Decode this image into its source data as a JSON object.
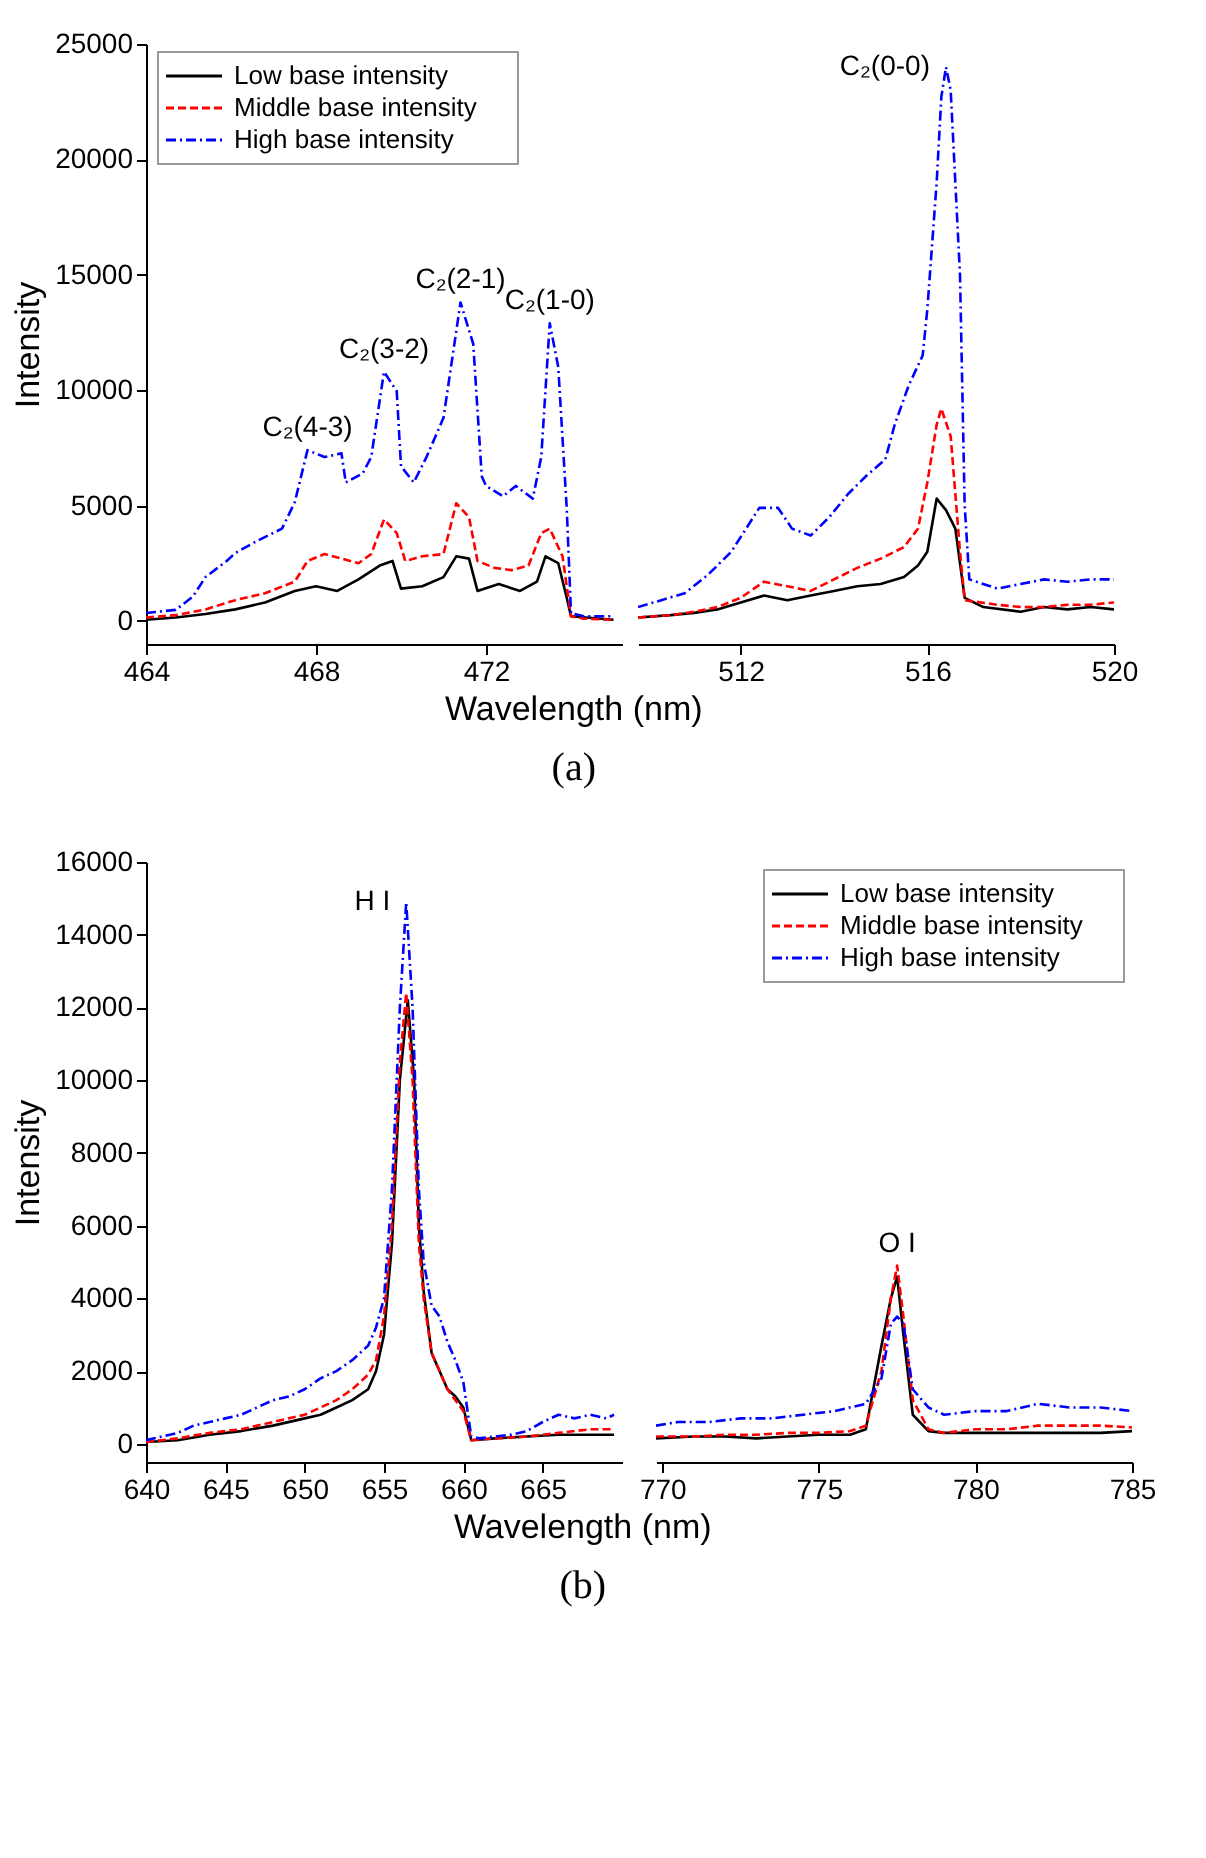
{
  "chart_data": [
    {
      "type": "line",
      "xlabel": "Wavelength (nm)",
      "ylabel": "Intensity",
      "xlim": [
        464,
        475.2
      ],
      "xticks": [
        464,
        468,
        472
      ],
      "ylim": [
        -1000,
        25000
      ],
      "yticks": [
        0,
        5000,
        10000,
        15000,
        20000,
        25000
      ],
      "grid": false,
      "legend": "top left",
      "annotations": [
        {
          "text": "C₂(4-3)",
          "x": 467.8,
          "y": 7400
        },
        {
          "text": "C₂(3-2)",
          "x": 469.6,
          "y": 10800
        },
        {
          "text": "C₂(2-1)",
          "x": 471.4,
          "y": 13800
        },
        {
          "text": "C₂(1-0)",
          "x": 473.5,
          "y": 12900
        },
        "(a)"
      ],
      "series": [
        {
          "name": "Low base intensity",
          "color": "#000000",
          "line_style": "solid",
          "x": [
            464.0,
            464.7,
            465.4,
            466.1,
            466.8,
            467.5,
            468.0,
            468.5,
            469.0,
            469.5,
            469.8,
            470.0,
            470.5,
            471.0,
            471.3,
            471.6,
            471.8,
            472.3,
            472.8,
            473.2,
            473.4,
            473.7,
            473.9,
            474.0,
            475.0
          ],
          "values": [
            50,
            150,
            300,
            500,
            800,
            1300,
            1500,
            1300,
            1800,
            2400,
            2600,
            1400,
            1500,
            1900,
            2800,
            2700,
            1300,
            1600,
            1300,
            1700,
            2800,
            2500,
            1000,
            200,
            50
          ]
        },
        {
          "name": "Middle base intensity",
          "color": "#ff0000",
          "line_style": "dashed",
          "x": [
            464.0,
            464.7,
            465.4,
            466.1,
            466.8,
            467.5,
            467.8,
            468.2,
            468.6,
            469.0,
            469.3,
            469.6,
            469.9,
            470.1,
            470.5,
            471.0,
            471.3,
            471.6,
            471.8,
            472.2,
            472.6,
            473.0,
            473.3,
            473.5,
            473.8,
            474.0,
            474.3,
            475.0
          ],
          "values": [
            150,
            250,
            500,
            900,
            1200,
            1700,
            2600,
            2900,
            2700,
            2500,
            2900,
            4400,
            3800,
            2600,
            2800,
            2900,
            5100,
            4500,
            2600,
            2300,
            2200,
            2400,
            3800,
            4000,
            2800,
            200,
            100,
            50
          ]
        },
        {
          "name": "High base intensity",
          "color": "#0000ff",
          "line_style": "dashdot",
          "x": [
            464.0,
            464.7,
            465.1,
            465.4,
            465.9,
            466.1,
            466.6,
            467.2,
            467.5,
            467.8,
            468.2,
            468.6,
            468.7,
            469.1,
            469.3,
            469.6,
            469.9,
            470.0,
            470.3,
            470.6,
            471.0,
            471.4,
            471.7,
            471.9,
            472.0,
            472.4,
            472.7,
            473.1,
            473.3,
            473.5,
            473.7,
            473.9,
            474.0,
            474.3,
            475.0
          ],
          "values": [
            340,
            480,
            1050,
            1900,
            2600,
            2940,
            3450,
            4000,
            5140,
            7400,
            7100,
            7260,
            6000,
            6400,
            7100,
            10800,
            9950,
            6700,
            6000,
            7100,
            8800,
            13800,
            12000,
            6270,
            5850,
            5400,
            5850,
            5300,
            7100,
            12900,
            11000,
            4860,
            340,
            200,
            200
          ]
        }
      ]
    },
    {
      "type": "line",
      "xlim": [
        509.8,
        520
      ],
      "xticks": [
        512,
        516,
        520
      ],
      "ylim": [
        -1000,
        25000
      ],
      "tick_labels": "x",
      "grid": false,
      "annotations": [
        {
          "text": "C₂(0-0)",
          "x": 516.4,
          "y": 24000
        }
      ],
      "series": [
        {
          "color": "#000000",
          "line_style": "solid",
          "x": [
            509.8,
            510.5,
            511.0,
            511.5,
            512.0,
            512.5,
            513.0,
            513.5,
            514.0,
            514.5,
            515.0,
            515.5,
            515.8,
            516.0,
            516.2,
            516.4,
            516.6,
            516.8,
            517.2,
            518.0,
            518.5,
            519.0,
            519.5,
            520.0
          ],
          "values": [
            150,
            250,
            350,
            500,
            800,
            1100,
            900,
            1100,
            1300,
            1500,
            1600,
            1900,
            2400,
            3000,
            5300,
            4800,
            4000,
            1000,
            600,
            400,
            600,
            500,
            600,
            500
          ]
        },
        {
          "color": "#ff0000",
          "line_style": "dashed",
          "x": [
            509.8,
            510.5,
            511.0,
            511.5,
            512.0,
            512.5,
            513.0,
            513.5,
            514.0,
            514.5,
            515.0,
            515.5,
            515.8,
            516.0,
            516.2,
            516.3,
            516.5,
            516.7,
            516.8,
            517.5,
            518.0,
            518.5,
            519.0,
            519.5,
            520.0
          ],
          "values": [
            150,
            250,
            400,
            600,
            1000,
            1700,
            1500,
            1300,
            1800,
            2300,
            2700,
            3200,
            4000,
            6000,
            8500,
            9200,
            8000,
            3000,
            900,
            700,
            600,
            600,
            700,
            700,
            800
          ]
        },
        {
          "color": "#0000ff",
          "line_style": "dashdot",
          "x": [
            509.8,
            510.3,
            510.8,
            511.3,
            511.8,
            512.4,
            512.8,
            513.1,
            513.5,
            513.9,
            514.3,
            514.7,
            515.1,
            515.3,
            515.6,
            515.9,
            516.0,
            516.2,
            516.3,
            516.4,
            516.5,
            516.7,
            516.8,
            516.9,
            517.5,
            518.0,
            518.5,
            519.0,
            519.5,
            520.0
          ],
          "values": [
            600,
            900,
            1200,
            2000,
            3000,
            4900,
            4900,
            4000,
            3700,
            4500,
            5500,
            6300,
            7000,
            8500,
            10200,
            11500,
            13500,
            19000,
            22700,
            24000,
            23000,
            15000,
            5000,
            1800,
            1400,
            1600,
            1800,
            1700,
            1800,
            1800
          ]
        }
      ]
    },
    {
      "type": "line",
      "xlabel": "Wavelength (nm)",
      "ylabel": "Intensity",
      "xlim": [
        640,
        670
      ],
      "xticks": [
        640,
        645,
        650,
        655,
        660,
        665
      ],
      "ylim": [
        -500,
        16000
      ],
      "yticks": [
        0,
        2000,
        4000,
        6000,
        8000,
        10000,
        12000,
        14000,
        16000
      ],
      "grid": false,
      "annotations": [
        {
          "text": "H I",
          "x": 656.4,
          "y": 14900
        },
        "(b)"
      ],
      "series": [
        {
          "color": "#000000",
          "line_style": "solid",
          "x": [
            640,
            642,
            644,
            646,
            648,
            650,
            651,
            652,
            653,
            654,
            654.5,
            655,
            655.5,
            656,
            656.5,
            656.9,
            657.2,
            657.5,
            658,
            658.5,
            659,
            659.5,
            660,
            660.5,
            662,
            664,
            666,
            668,
            669.5
          ],
          "values": [
            50,
            100,
            250,
            350,
            500,
            700,
            800,
            1000,
            1200,
            1500,
            2000,
            3000,
            5500,
            10000,
            12200,
            10000,
            6000,
            4200,
            2500,
            2000,
            1500,
            1300,
            1000,
            100,
            150,
            200,
            250,
            250,
            250
          ]
        },
        {
          "color": "#ff0000",
          "line_style": "dashed",
          "x": [
            640,
            642,
            644,
            646,
            648,
            650,
            651,
            652,
            653,
            654,
            654.5,
            655,
            655.5,
            656,
            656.4,
            656.8,
            657.2,
            657.5,
            658,
            658.5,
            659,
            659.5,
            660,
            660.5,
            662,
            664,
            666,
            668,
            669.5
          ],
          "values": [
            50,
            150,
            300,
            400,
            600,
            800,
            1000,
            1200,
            1500,
            1900,
            2300,
            3500,
            6000,
            10500,
            12400,
            10000,
            5500,
            4000,
            2500,
            2000,
            1500,
            1200,
            900,
            100,
            150,
            200,
            300,
            400,
            400
          ]
        },
        {
          "color": "#0000ff",
          "line_style": "dashdot",
          "x": [
            640,
            641,
            642,
            643,
            644,
            645,
            646,
            647,
            648,
            649,
            650,
            651,
            652,
            653,
            654,
            654.5,
            655,
            655.5,
            656,
            656.4,
            656.8,
            657.2,
            657.5,
            658,
            658.5,
            659,
            659.5,
            660,
            660.5,
            661,
            662,
            663,
            664,
            665,
            666,
            667,
            668,
            669,
            669.5
          ],
          "values": [
            100,
            200,
            300,
            500,
            600,
            700,
            800,
            1000,
            1200,
            1300,
            1500,
            1800,
            2000,
            2300,
            2700,
            3200,
            4000,
            7000,
            12000,
            14900,
            12000,
            7000,
            5000,
            3800,
            3500,
            2800,
            2300,
            1700,
            200,
            150,
            200,
            250,
            350,
            600,
            800,
            700,
            800,
            700,
            800
          ]
        }
      ]
    },
    {
      "type": "line",
      "xlim": [
        769.8,
        785
      ],
      "xticks": [
        770,
        775,
        780,
        785
      ],
      "ylim": [
        -500,
        16000
      ],
      "tick_labels": "x",
      "grid": false,
      "legend": "top right",
      "annotations": [
        {
          "text": "O I",
          "x": 777.5,
          "y": 4900
        }
      ],
      "series": [
        {
          "name": "Low base intensity",
          "color": "#000000",
          "line_style": "solid",
          "x": [
            769.8,
            771,
            772,
            773,
            774,
            775,
            776,
            776.5,
            777,
            777.3,
            777.5,
            777.7,
            778,
            778.5,
            779,
            780,
            781,
            782,
            783,
            784,
            785
          ],
          "values": [
            150,
            200,
            200,
            150,
            200,
            250,
            250,
            400,
            2700,
            4000,
            4600,
            3000,
            800,
            350,
            300,
            300,
            300,
            300,
            300,
            300,
            350
          ]
        },
        {
          "name": "Middle base intensity",
          "color": "#ff0000",
          "line_style": "dashed",
          "x": [
            769.8,
            771,
            772,
            773,
            774,
            775,
            776,
            776.5,
            777,
            777.3,
            777.5,
            777.7,
            778,
            778.5,
            779,
            780,
            781,
            782,
            783,
            784,
            785
          ],
          "values": [
            200,
            200,
            250,
            250,
            300,
            300,
            350,
            500,
            2000,
            4000,
            4900,
            3500,
            1200,
            400,
            300,
            400,
            400,
            500,
            500,
            500,
            450
          ]
        },
        {
          "name": "High base intensity",
          "color": "#0000ff",
          "line_style": "dashdot",
          "x": [
            769.8,
            770.5,
            771.5,
            772.5,
            773.5,
            774.5,
            775.5,
            776.5,
            777,
            777.3,
            777.5,
            777.7,
            778,
            778.5,
            779,
            780,
            781,
            782,
            783,
            784,
            785
          ],
          "values": [
            500,
            600,
            600,
            700,
            700,
            800,
            900,
            1100,
            1800,
            3300,
            3500,
            3300,
            1500,
            1000,
            800,
            900,
            900,
            1100,
            1000,
            1000,
            900
          ]
        }
      ]
    }
  ]
}
